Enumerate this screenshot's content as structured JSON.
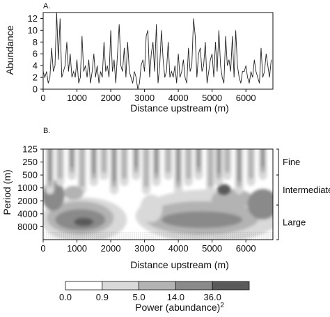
{
  "chart_data": [
    {
      "panel_label": "A.",
      "type": "line",
      "xlabel": "Distance upstream (m)",
      "ylabel": "Abundance",
      "xlim": [
        0,
        6800
      ],
      "ylim": [
        0,
        13
      ],
      "x_ticks": [
        "0",
        "1000",
        "2000",
        "3000",
        "4000",
        "5000",
        "6000"
      ],
      "y_ticks": [
        "0",
        "2",
        "4",
        "6",
        "8",
        "10",
        "12"
      ],
      "series": [
        {
          "x": [
            0,
            50,
            100,
            150,
            200,
            250,
            300,
            350,
            400,
            450,
            500,
            550,
            600,
            650,
            700,
            750,
            800,
            850,
            900,
            950,
            1000,
            1050,
            1100,
            1150,
            1200,
            1250,
            1300,
            1350,
            1400,
            1450,
            1500,
            1550,
            1600,
            1650,
            1700,
            1750,
            1800,
            1850,
            1900,
            1950,
            2000,
            2050,
            2100,
            2150,
            2200,
            2250,
            2300,
            2350,
            2400,
            2450,
            2500,
            2550,
            2600,
            2650,
            2700,
            2750,
            2800,
            2850,
            2900,
            2950,
            3000,
            3050,
            3100,
            3150,
            3200,
            3250,
            3300,
            3350,
            3400,
            3450,
            3500,
            3550,
            3600,
            3650,
            3700,
            3750,
            3800,
            3850,
            3900,
            3950,
            4000,
            4050,
            4100,
            4150,
            4200,
            4250,
            4300,
            4350,
            4400,
            4450,
            4500,
            4550,
            4600,
            4650,
            4700,
            4750,
            4800,
            4850,
            4900,
            4950,
            5000,
            5050,
            5100,
            5150,
            5200,
            5250,
            5300,
            5350,
            5400,
            5450,
            5500,
            5550,
            5600,
            5650,
            5700,
            5750,
            5800,
            5850,
            5900,
            5950,
            6000,
            6050,
            6100,
            6150,
            6200,
            6250,
            6300,
            6350,
            6400,
            6450,
            6500,
            6550,
            6600,
            6650,
            6700,
            6750
          ],
          "values": [
            3,
            2,
            3,
            1,
            2,
            7,
            3,
            4,
            13,
            5,
            12,
            2,
            3,
            4,
            8,
            3,
            6,
            2,
            3,
            2,
            5,
            1,
            2,
            9,
            3,
            4,
            2,
            5,
            1,
            3,
            6,
            2,
            4,
            1,
            3,
            2,
            8,
            3,
            4,
            2,
            10,
            3,
            5,
            1,
            6,
            11,
            4,
            3,
            7,
            2,
            8,
            3,
            2,
            1,
            3,
            2,
            0,
            1,
            4,
            5,
            3,
            9,
            10,
            2,
            6,
            8,
            3,
            11,
            1,
            4,
            10,
            5,
            2,
            3,
            8,
            2,
            3,
            2,
            4,
            1,
            6,
            2,
            3,
            5,
            2,
            1,
            7,
            3,
            4,
            12,
            9,
            2,
            6,
            7,
            3,
            4,
            8,
            1,
            3,
            5,
            6,
            2,
            8,
            3,
            10,
            4,
            2,
            1,
            9,
            4,
            5,
            3,
            9,
            2,
            10,
            4,
            2,
            1,
            3,
            3,
            4,
            2,
            1,
            3,
            2,
            5,
            3,
            2,
            1,
            7,
            2,
            3,
            6,
            4,
            2,
            5
          ]
        }
      ]
    },
    {
      "panel_label": "B.",
      "type": "heatmap",
      "xlabel": "Distance upstream (m)",
      "ylabel": "Period (m)",
      "xlim": [
        0,
        6800
      ],
      "y_scale": "log2",
      "y_reversed": true,
      "ylim": [
        125,
        16000
      ],
      "x_ticks": [
        "0",
        "1000",
        "2000",
        "3000",
        "4000",
        "5000",
        "6000"
      ],
      "y_ticks": [
        "125",
        "250",
        "500",
        "1000",
        "2000",
        "4000",
        "8000"
      ],
      "bands": [
        {
          "label": "Fine",
          "from": 125,
          "to": 500
        },
        {
          "label": "Intermediate",
          "from": 500,
          "to": 2500
        },
        {
          "label": "Large",
          "from": 2500,
          "to": 16000
        }
      ],
      "colorbar": {
        "title": "Power (abundance)",
        "title_superscript": "2",
        "boundaries": [
          "0.0",
          "0.9",
          "5.0",
          "14.0",
          "36.0"
        ],
        "colors": [
          "#ffffff",
          "#d9d9d9",
          "#b3b3b3",
          "#8a8a8a",
          "#5a5a5a"
        ]
      }
    }
  ]
}
